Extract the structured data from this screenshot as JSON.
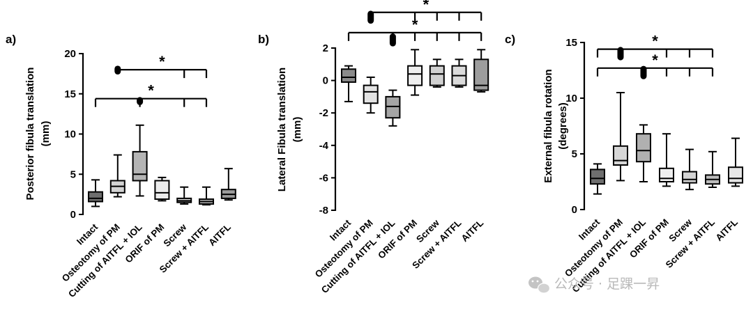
{
  "chart_data": [
    {
      "type": "box",
      "panel": "a)",
      "ylabel_lines": [
        "Posterior fibula translation",
        "(mm)"
      ],
      "ylim": [
        0,
        20
      ],
      "yticks": [
        0,
        5,
        10,
        15,
        20
      ],
      "categories": [
        "Intact",
        "Osteotomy of PM",
        "Cutting of AITFL + IOL",
        "ORIF of PM",
        "Screw",
        "Screw + AITFL",
        "AITFL"
      ],
      "boxes": [
        {
          "min": 1.0,
          "q1": 1.6,
          "median": 2.0,
          "q3": 2.8,
          "max": 4.3,
          "fill": "#6e6e6e"
        },
        {
          "min": 2.2,
          "q1": 2.7,
          "median": 3.5,
          "q3": 4.2,
          "max": 7.4,
          "fill": "#d4d4d4"
        },
        {
          "min": 2.3,
          "q1": 4.2,
          "median": 5.0,
          "q3": 7.8,
          "max": 11.1,
          "fill": "#b4b4b4"
        },
        {
          "min": 1.7,
          "q1": 1.9,
          "median": 2.7,
          "q3": 4.2,
          "max": 4.6,
          "fill": "#ececec"
        },
        {
          "min": 1.3,
          "q1": 1.5,
          "median": 1.7,
          "q3": 2.0,
          "max": 3.4,
          "fill": "#d8d8d8"
        },
        {
          "min": 1.2,
          "q1": 1.3,
          "median": 1.6,
          "q3": 1.9,
          "max": 3.4,
          "fill": "#bababa"
        },
        {
          "min": 1.8,
          "q1": 2.0,
          "median": 2.5,
          "q3": 3.1,
          "max": 5.7,
          "fill": "#9c9c9c"
        }
      ],
      "significance": [
        {
          "from": "Osteotomy of PM",
          "to": "Screw + AITFL",
          "drops": [
            "Screw",
            "Screw + AITFL"
          ],
          "y": 18.0,
          "label": "*"
        },
        {
          "from": "Intact",
          "to": "Screw + AITFL",
          "drops": [
            "Intact",
            "Cutting of AITFL + IOL",
            "Screw",
            "Screw + AITFL"
          ],
          "y": 14.4,
          "label": "*"
        }
      ],
      "outlier_markers": [
        {
          "category": "Osteotomy of PM",
          "y_from": 17.4,
          "y_to": 18.5
        },
        {
          "category": "Cutting of AITFL + IOL",
          "y_from": 13.6,
          "y_to": 14.6
        }
      ]
    },
    {
      "type": "box",
      "panel": "b)",
      "ylabel_lines": [
        "Lateral Fibula translation",
        "(mm)"
      ],
      "ylim": [
        -8,
        2
      ],
      "yticks": [
        -8,
        -6,
        -4,
        -2,
        0,
        2
      ],
      "categories": [
        "Intact",
        "Osteotomy of PM",
        "Cutting of AITFL + IOL",
        "ORIF of PM",
        "Screw",
        "Screw + AITFL",
        "AITFL"
      ],
      "boxes": [
        {
          "min": -1.3,
          "q1": -0.1,
          "median": 0.2,
          "q3": 0.7,
          "max": 0.9,
          "fill": "#8a8a8a"
        },
        {
          "min": -2.0,
          "q1": -1.4,
          "median": -0.7,
          "q3": -0.3,
          "max": 0.2,
          "fill": "#e3e3e3"
        },
        {
          "min": -2.8,
          "q1": -2.3,
          "median": -1.6,
          "q3": -1.0,
          "max": -0.6,
          "fill": "#a5a5a5"
        },
        {
          "min": -0.9,
          "q1": -0.3,
          "median": 0.4,
          "q3": 0.9,
          "max": 1.9,
          "fill": "#efefef"
        },
        {
          "min": -0.4,
          "q1": -0.3,
          "median": 0.4,
          "q3": 0.9,
          "max": 1.3,
          "fill": "#d1d1d1"
        },
        {
          "min": -0.4,
          "q1": -0.3,
          "median": 0.3,
          "q3": 0.9,
          "max": 1.3,
          "fill": "#dbdbdb"
        },
        {
          "min": -0.7,
          "q1": -0.6,
          "median": -0.3,
          "q3": 1.3,
          "max": 1.9,
          "fill": "#9d9d9d"
        }
      ],
      "significance": [
        {
          "from": "Osteotomy of PM",
          "to": "AITFL",
          "drops": [
            "Osteotomy of PM",
            "ORIF of PM",
            "Screw",
            "Screw + AITFL",
            "AITFL"
          ],
          "y": 4.2,
          "label": "*"
        },
        {
          "from": "Intact",
          "to": "AITFL",
          "drops": [
            "Intact",
            "Cutting of AITFL + IOL",
            "ORIF of PM",
            "Screw",
            "Screw + AITFL",
            "AITFL"
          ],
          "y": 2.95,
          "label": "*"
        }
      ],
      "outlier_markers": [
        {
          "category": "Osteotomy of PM",
          "y_from": 3.5,
          "y_to": 4.3
        },
        {
          "category": "Cutting of AITFL + IOL",
          "y_from": 2.1,
          "y_to": 2.9
        }
      ]
    },
    {
      "type": "box",
      "panel": "c)",
      "ylabel_lines": [
        "External fibula rotation",
        "(degrees)"
      ],
      "ylim": [
        0,
        15
      ],
      "yticks": [
        0,
        5,
        10,
        15
      ],
      "categories": [
        "Intact",
        "Osteotomy of PM",
        "Cutting of AITFL + IOL",
        "ORIF of PM",
        "Screw",
        "Screw + AITFL",
        "AITFL"
      ],
      "boxes": [
        {
          "min": 1.4,
          "q1": 2.3,
          "median": 2.8,
          "q3": 3.6,
          "max": 4.1,
          "fill": "#6f6f6f"
        },
        {
          "min": 2.6,
          "q1": 4.0,
          "median": 4.4,
          "q3": 5.7,
          "max": 10.5,
          "fill": "#d6d6d6"
        },
        {
          "min": 2.5,
          "q1": 4.3,
          "median": 5.3,
          "q3": 6.8,
          "max": 7.6,
          "fill": "#b0b0b0"
        },
        {
          "min": 2.1,
          "q1": 2.5,
          "median": 2.8,
          "q3": 3.7,
          "max": 6.8,
          "fill": "#f0f0f0"
        },
        {
          "min": 1.8,
          "q1": 2.4,
          "median": 2.7,
          "q3": 3.4,
          "max": 5.4,
          "fill": "#d4d4d4"
        },
        {
          "min": 2.0,
          "q1": 2.3,
          "median": 2.7,
          "q3": 3.1,
          "max": 5.2,
          "fill": "#bcbcbc"
        },
        {
          "min": 2.1,
          "q1": 2.4,
          "median": 2.8,
          "q3": 3.8,
          "max": 6.4,
          "fill": "#e6e6e6"
        }
      ],
      "significance": [
        {
          "from": "Intact",
          "to": "Screw + AITFL",
          "drops": [
            "Intact",
            "ORIF of PM",
            "Screw",
            "Screw + AITFL"
          ],
          "y": 14.4,
          "label": "*"
        },
        {
          "from": "Intact",
          "to": "Screw + AITFL",
          "drops": [
            "Intact",
            "Cutting of AITFL + IOL",
            "ORIF of PM",
            "Screw",
            "Screw + AITFL"
          ],
          "y": 12.7,
          "label": "*"
        }
      ],
      "outlier_markers": [
        {
          "category": "Osteotomy of PM",
          "y_from": 13.4,
          "y_to": 14.6
        },
        {
          "category": "Cutting of AITFL + IOL",
          "y_from": 11.7,
          "y_to": 12.9
        }
      ]
    }
  ],
  "watermark": {
    "text": "公众号 · 足踝一昇",
    "icon": "wechat-icon"
  }
}
